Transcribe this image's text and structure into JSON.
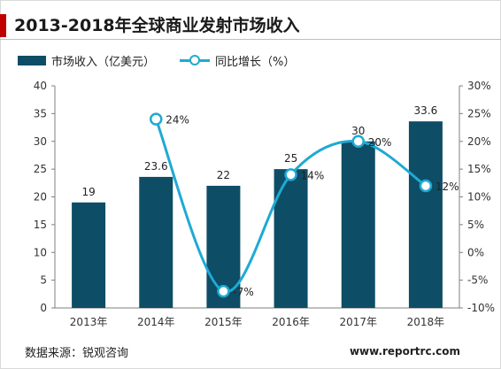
{
  "title": "2013-2018年全球商业发射市场收入",
  "legend": {
    "bar_label": "市场收入（亿美元）",
    "line_label": "同比增长（%）"
  },
  "source": "数据来源：锐观咨询",
  "website": "www.reportrc.com",
  "colors": {
    "bar": "#0e4d66",
    "line": "#1eaad4",
    "accent": "#c00000"
  },
  "chart_data": {
    "type": "bar+line",
    "categories": [
      "2013年",
      "2014年",
      "2015年",
      "2016年",
      "2017年",
      "2018年"
    ],
    "series": [
      {
        "name": "市场收入（亿美元）",
        "type": "bar",
        "axis": "left",
        "values": [
          19,
          23.6,
          22,
          25,
          30,
          33.6
        ],
        "labels": [
          "19",
          "23.6",
          "22",
          "25",
          "30",
          "33.6"
        ]
      },
      {
        "name": "同比增长（%）",
        "type": "line",
        "axis": "right",
        "values": [
          null,
          24,
          -7,
          14,
          20,
          12
        ],
        "labels": [
          "",
          "24%",
          "-7%",
          "14%",
          "20%",
          "12%"
        ]
      }
    ],
    "y_left": {
      "min": 0,
      "max": 40,
      "ticks": [
        "0",
        "5",
        "10",
        "15",
        "20",
        "25",
        "30",
        "35",
        "40"
      ]
    },
    "y_right": {
      "min": -10,
      "max": 30,
      "ticks": [
        "-10%",
        "-5%",
        "0%",
        "5%",
        "10%",
        "15%",
        "20%",
        "25%",
        "30%"
      ]
    },
    "grid": false,
    "legend_position": "top-left"
  }
}
